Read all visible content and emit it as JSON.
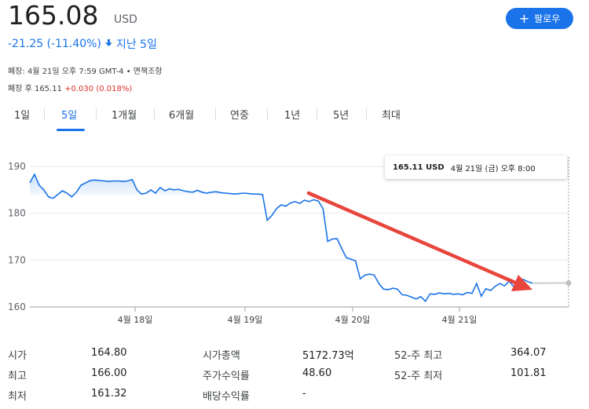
{
  "quote": {
    "price": "165.08",
    "currency": "USD",
    "change": "-21.25 (-11.40%)",
    "period": "지난 5일",
    "follow_label": "팔로우",
    "close_line": "폐장: 4월 21일 오후 7:59 GMT-4 • 면책조항",
    "after_hours_prefix": "폐장 후 165.11",
    "after_hours_change": "+0.030 (0.018%)"
  },
  "tabs": [
    {
      "label": "1일"
    },
    {
      "label": "5일"
    },
    {
      "label": "1개월"
    },
    {
      "label": "6개월"
    },
    {
      "label": "연중"
    },
    {
      "label": "1년"
    },
    {
      "label": "5년"
    },
    {
      "label": "최대"
    }
  ],
  "active_tab": "5일",
  "tooltip": {
    "price": "165.11 USD",
    "time": "4월 21일 (금) 오후 8:00"
  },
  "colors": {
    "accent": "#1a73e8",
    "negative": "#d93025",
    "arrow": "#e8453c"
  },
  "chart_data": {
    "type": "line",
    "ylim": [
      160,
      190
    ],
    "yticks": [
      "190",
      "180",
      "170",
      "160"
    ],
    "xlabels": [
      "4월 18일",
      "4월 19일",
      "4월 20일",
      "4월 21일"
    ],
    "series": [
      {
        "values": [
          186.5,
          188.3,
          186,
          185,
          183.5,
          183.2,
          184,
          184.8,
          184.3,
          183.5,
          184.5,
          186,
          186.5,
          187,
          187.1,
          187,
          186.9,
          186.8,
          186.9,
          186.9,
          186.8,
          186.9,
          187.2,
          185,
          184.1,
          184.3,
          185,
          184.3,
          185.5,
          184.8,
          185.2,
          185,
          185.1,
          184.8,
          184.6,
          184.5,
          184.9,
          184.5,
          184.3,
          184.5,
          184.6,
          184.4,
          184.3,
          184.2,
          184.1,
          184.2,
          184.3,
          184.2,
          184.1,
          184.1,
          184.0,
          178.5,
          179.5,
          181,
          181.8,
          181.5,
          182.2,
          182.5,
          182.1,
          182.8,
          182.5,
          182.9,
          182.6,
          181,
          174,
          174.5,
          174.6,
          172.5,
          170.5,
          170.2,
          169.8,
          166,
          166.8,
          167,
          166.8,
          165,
          163.8,
          163.7,
          164,
          163.8,
          162.6,
          162.5,
          162.1,
          161.7,
          162.2,
          161.2,
          162.8,
          162.7,
          163,
          162.8,
          162.9,
          162.7,
          162.8,
          162.6,
          163.1,
          162.9,
          165,
          162.3,
          163.9,
          163.5,
          164.4,
          165,
          164.5,
          165.5,
          164.3,
          165.8,
          165.9,
          165.4,
          165.08
        ],
        "after_hours": [
          165.08,
          165.11
        ]
      }
    ]
  },
  "stats": [
    {
      "label": "시가",
      "value": "164.80"
    },
    {
      "label": "최고",
      "value": "166.00"
    },
    {
      "label": "최저",
      "value": "161.32"
    },
    {
      "label": "시가총액",
      "value": "5172.73억"
    },
    {
      "label": "주가수익률",
      "value": "48.60"
    },
    {
      "label": "배당수익률",
      "value": "-"
    },
    {
      "label": "52-주 최고",
      "value": "364.07"
    },
    {
      "label": "52-주 최저",
      "value": "101.81"
    }
  ]
}
